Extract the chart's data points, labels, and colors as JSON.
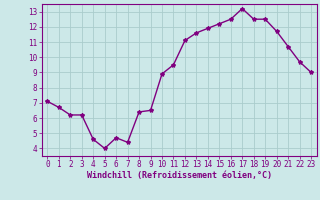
{
  "x": [
    0,
    1,
    2,
    3,
    4,
    5,
    6,
    7,
    8,
    9,
    10,
    11,
    12,
    13,
    14,
    15,
    16,
    17,
    18,
    19,
    20,
    21,
    22,
    23
  ],
  "y": [
    7.1,
    6.7,
    6.2,
    6.2,
    4.6,
    4.0,
    4.7,
    4.4,
    6.4,
    6.5,
    8.9,
    9.5,
    11.1,
    11.6,
    11.9,
    12.2,
    12.5,
    13.2,
    12.5,
    12.5,
    11.7,
    10.7,
    9.7,
    9.0
  ],
  "line_color": "#800080",
  "marker": "*",
  "marker_size": 3,
  "bg_color": "#cce8e8",
  "grid_color": "#aacccc",
  "xlabel": "Windchill (Refroidissement éolien,°C)",
  "xlabel_color": "#800080",
  "tick_color": "#800080",
  "spine_color": "#800080",
  "ylim": [
    3.5,
    13.5
  ],
  "xlim": [
    -0.5,
    23.5
  ],
  "yticks": [
    4,
    5,
    6,
    7,
    8,
    9,
    10,
    11,
    12,
    13
  ],
  "xticks": [
    0,
    1,
    2,
    3,
    4,
    5,
    6,
    7,
    8,
    9,
    10,
    11,
    12,
    13,
    14,
    15,
    16,
    17,
    18,
    19,
    20,
    21,
    22,
    23
  ],
  "tick_fontsize": 5.5,
  "xlabel_fontsize": 6.0,
  "line_width": 1.0
}
